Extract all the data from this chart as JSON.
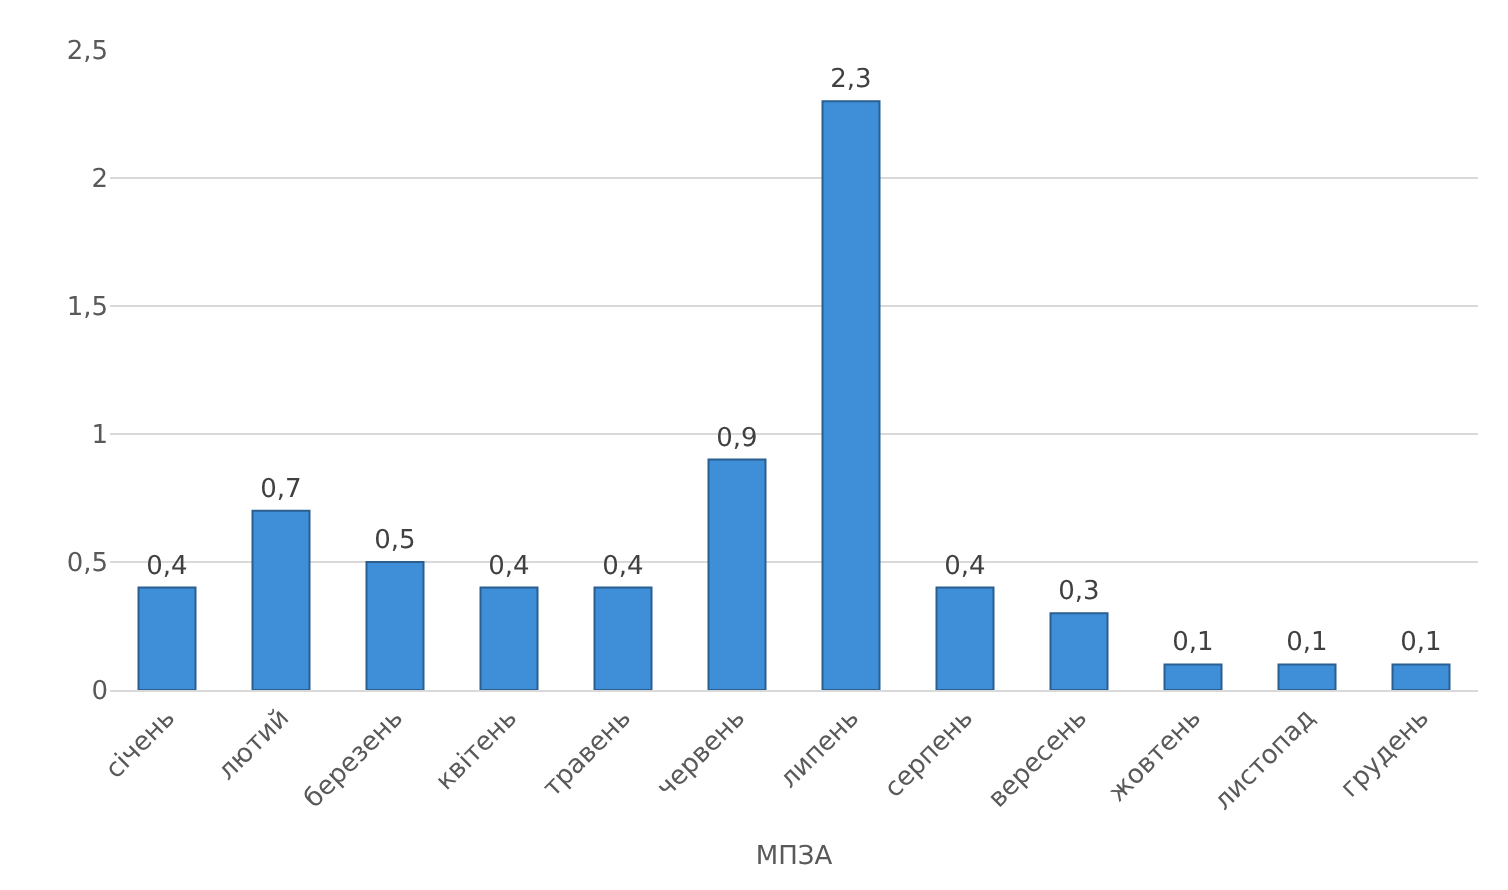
{
  "chart_data": {
    "type": "bar",
    "xlabel": "МПЗА",
    "categories": [
      "січень",
      "лютий",
      "березень",
      "квітень",
      "травень",
      "червень",
      "липень",
      "серпень",
      "вересень",
      "жовтень",
      "листопад",
      "грудень"
    ],
    "values": [
      0.4,
      0.7,
      0.5,
      0.4,
      0.4,
      0.9,
      2.3,
      0.4,
      0.3,
      0.1,
      0.1,
      0.1
    ],
    "value_labels": [
      "0,4",
      "0,7",
      "0,5",
      "0,4",
      "0,4",
      "0,9",
      "2,3",
      "0,4",
      "0,3",
      "0,1",
      "0,1",
      "0,1"
    ],
    "color": "#3f8fd8",
    "ylim": [
      0,
      2.5
    ],
    "yticks": [
      0,
      {
        "value": 0.5,
        "label": "0,5"
      },
      1,
      {
        "value": 1.5,
        "label": "1,5"
      },
      2,
      {
        "value": 2.5,
        "label": "2,5"
      }
    ],
    "grid": "y"
  }
}
